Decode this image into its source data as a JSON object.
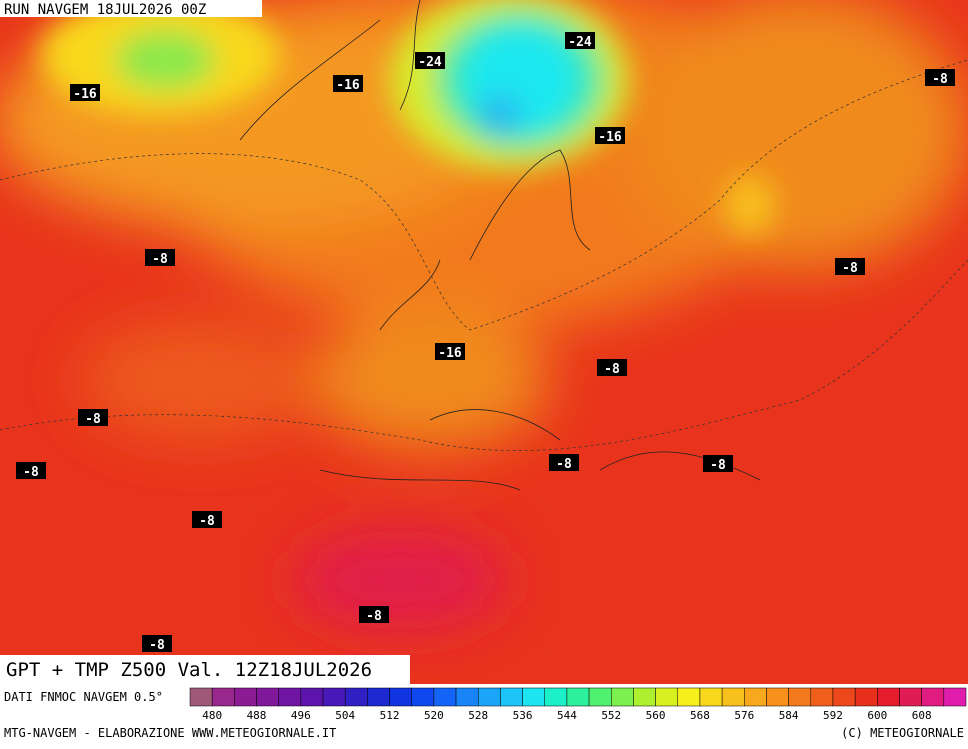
{
  "header": {
    "run": "RUN NAVGEM 18JUL2026 00Z"
  },
  "map": {
    "title": "GPT + TMP Z500 Val. 12Z18JUL2026",
    "temperature_labels": [
      -16,
      -24,
      -16,
      -24,
      -8,
      -16,
      -8,
      -8,
      -16,
      -8,
      -8,
      -8,
      -8,
      -8,
      -8,
      -8,
      -8
    ]
  },
  "legend": {
    "source": "DATI FNMOC NAVGEM 0.5°",
    "ticks": [
      480,
      488,
      496,
      504,
      512,
      520,
      528,
      536,
      544,
      552,
      560,
      568,
      576,
      584,
      592,
      600,
      608
    ]
  },
  "footer": {
    "credit": "MTG-NAVGEM - ELABORAZIONE WWW.METEOGIORNALE.IT",
    "copyright": "(C) METEOGIORNALE"
  }
}
